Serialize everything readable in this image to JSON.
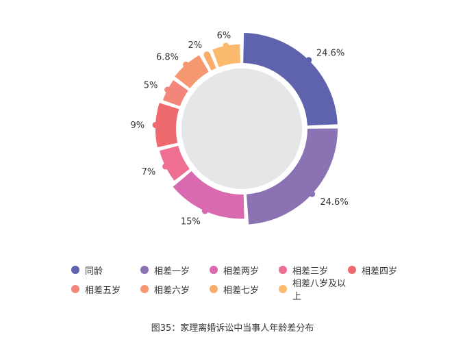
{
  "chart_data": {
    "type": "pie",
    "donut": true,
    "categories": [
      "同龄",
      "相差一岁",
      "相差两岁",
      "相差三岁",
      "相差四岁",
      "相差五岁",
      "相差六岁",
      "相差七岁",
      "相差八岁及以上"
    ],
    "values": [
      24.6,
      24.6,
      15,
      7,
      9,
      5,
      6.8,
      2,
      6
    ],
    "data_labels": [
      "24.6%",
      "24.6%",
      "15%",
      "7%",
      "9%",
      "5%",
      "6.8%",
      "2%",
      "6%"
    ],
    "colors": [
      "#5f63ad",
      "#8a72b3",
      "#d96ab0",
      "#ee6f91",
      "#ef6a6f",
      "#f3867a",
      "#f59770",
      "#f8ad6c",
      "#fbba6e"
    ],
    "legend_position": "bottom"
  },
  "caption": "图35：家理离婚诉讼中当事人年龄差分布"
}
